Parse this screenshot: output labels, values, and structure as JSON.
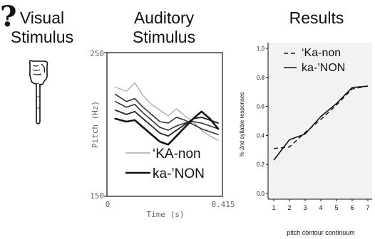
{
  "visual": {
    "title_line1": "Visual",
    "title_line2": "Stimulus",
    "icons": [
      "pointing-hand-icon",
      "question-mark-icon"
    ],
    "question_mark": "?"
  },
  "auditory": {
    "title_line1": "Auditory",
    "title_line2": "Stimulus",
    "y_label": "Pitch (Hz)",
    "y_max_label": "250",
    "y_min_label": "150",
    "x_label": "Time (s)",
    "x_min_label": "0",
    "x_max_label": "0.415",
    "legend": [
      {
        "label": "‘KA-non",
        "style": "thin-gray"
      },
      {
        "label": "ka-’NON",
        "style": "thick-black"
      }
    ]
  },
  "results": {
    "title": "Results"
  },
  "chart_data": [
    {
      "type": "line",
      "title": "",
      "xlabel": "Time (s)",
      "ylabel": "Pitch (Hz)",
      "xlim": [
        0,
        0.415
      ],
      "ylim": [
        150,
        250
      ],
      "x": [
        0.03,
        0.07,
        0.1,
        0.13,
        0.16,
        0.19,
        0.22,
        0.25,
        0.28,
        0.31,
        0.34,
        0.37,
        0.4
      ],
      "series": [
        {
          "name": "‘KA-non",
          "values": [
            226,
            223,
            229,
            220,
            214,
            210,
            206,
            211,
            206,
            202,
            196,
            192,
            189
          ]
        },
        {
          "name": "",
          "values": [
            221,
            216,
            218,
            212,
            207,
            202,
            201,
            205,
            203,
            200,
            197,
            195,
            193
          ]
        },
        {
          "name": "",
          "values": [
            216,
            212,
            214,
            208,
            203,
            198,
            196,
            199,
            201,
            202,
            201,
            199,
            197
          ]
        },
        {
          "name": "",
          "values": [
            210,
            207,
            209,
            204,
            199,
            194,
            192,
            196,
            200,
            204,
            205,
            203,
            201
          ]
        },
        {
          "name": "ka-’NON",
          "values": [
            204,
            202,
            203,
            198,
            193,
            188,
            186,
            192,
            198,
            204,
            209,
            204,
            197
          ]
        }
      ],
      "legend_position": "bottom-right",
      "grid": false
    },
    {
      "type": "line",
      "title": "",
      "xlabel": "pitch contour continuum",
      "ylabel": "% 2nd syllable responses",
      "xlim": [
        1,
        7
      ],
      "ylim": [
        0,
        1.0
      ],
      "categories": [
        "1",
        "2",
        "3",
        "4",
        "5",
        "6",
        "7"
      ],
      "y_ticks": [
        "0.0",
        "0.2",
        "0.4",
        "0.6",
        "0.8",
        "1.0"
      ],
      "x": [
        1,
        2,
        3,
        4,
        5,
        6,
        7
      ],
      "series": [
        {
          "name": "‘Ka-non",
          "style": "dashed",
          "values": [
            0.31,
            0.32,
            0.42,
            0.51,
            0.61,
            0.72,
            0.74
          ]
        },
        {
          "name": "ka-’NON",
          "style": "solid",
          "values": [
            0.23,
            0.37,
            0.41,
            0.53,
            0.62,
            0.73,
            0.74
          ]
        }
      ],
      "legend_position": "top-right",
      "grid": false
    }
  ]
}
